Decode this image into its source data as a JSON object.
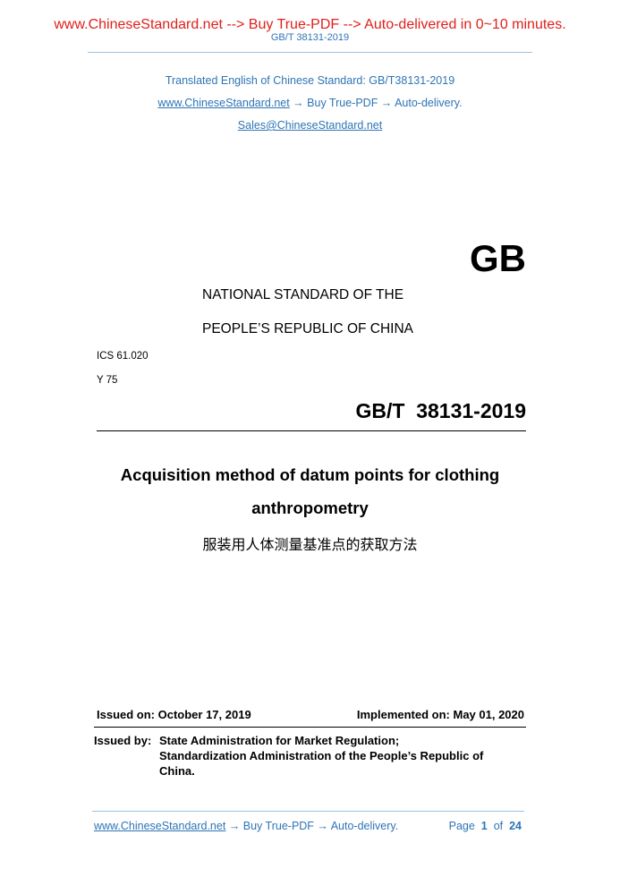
{
  "banner": "www.ChineseStandard.net --> Buy True-PDF --> Auto-delivered in 0~10 minutes.",
  "running_header": "GB/T 38131-2019",
  "intro": {
    "translated": "Translated English of Chinese Standard: GB/T38131-2019",
    "link": "www.ChineseStandard.net",
    "link_suffix": " → Buy True-PDF → Auto-delivery.",
    "email": "Sales@ChineseStandard.net"
  },
  "logo": "GB",
  "national_line1": "NATIONAL STANDARD OF THE",
  "national_line2": "PEOPLE’S REPUBLIC OF CHINA",
  "ics": "ICS 61.020",
  "class_code": "Y 75",
  "standard_number": "GB/T  38131-2019",
  "title_line1": "Acquisition method of datum points for clothing",
  "title_line2": "anthropometry",
  "title_chinese": "服装用人体测量基准点的获取方法",
  "issued_on": "Issued on: October 17, 2019",
  "implemented_on": "Implemented on: May 01, 2020",
  "issued_by_label": "Issued by:",
  "issued_by_line1": "State Administration for Market Regulation;",
  "issued_by_line2": "Standardization Administration of the People’s Republic of",
  "issued_by_line3": "China.",
  "footer": {
    "link": "www.ChineseStandard.net",
    "link_suffix": " → Buy True-PDF → Auto-delivery.",
    "page_label": "Page",
    "page": "1",
    "of_label": "of",
    "total": "24"
  },
  "colors": {
    "banner": "#e0201c",
    "accent": "#2e74b5"
  }
}
